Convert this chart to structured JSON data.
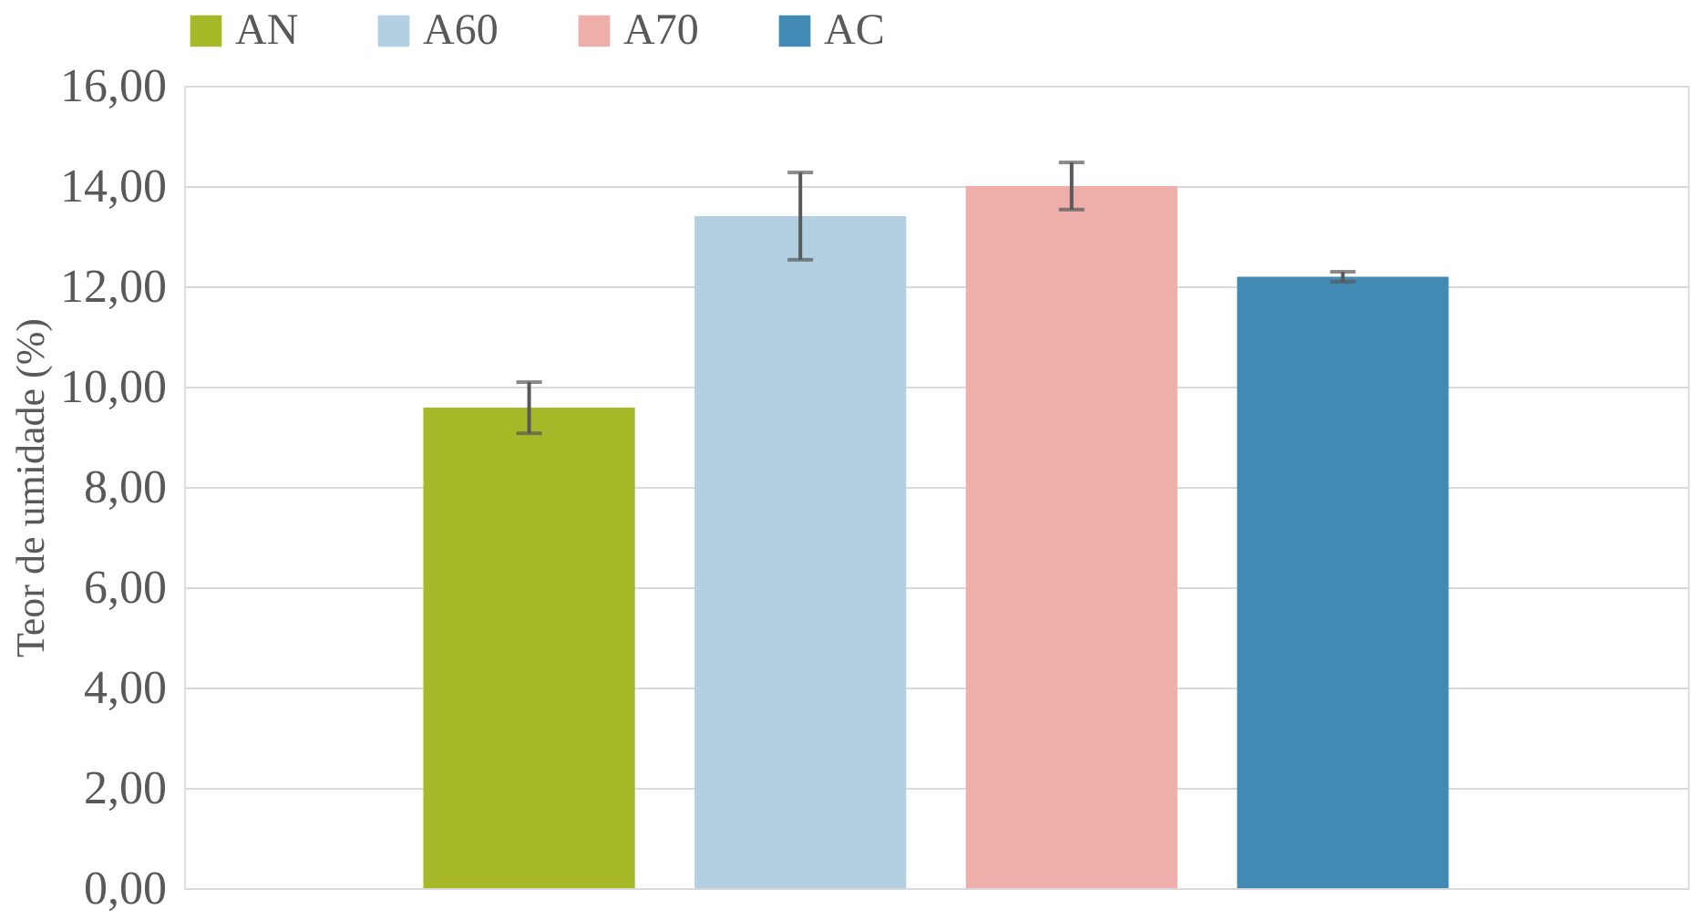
{
  "chart_data": {
    "type": "bar",
    "ylabel": "Teor de umidade (%)",
    "categories": [
      null
    ],
    "series": [
      {
        "name": "AN",
        "color": "#a7b828",
        "values": [
          9.58
        ],
        "errors": [
          0.51
        ]
      },
      {
        "name": "A60",
        "color": "#b2d0e2",
        "values": [
          13.4
        ],
        "errors": [
          0.87
        ]
      },
      {
        "name": "A70",
        "color": "#eeafaa",
        "values": [
          14.0
        ],
        "errors": [
          0.47
        ]
      },
      {
        "name": "AC",
        "color": "#418ab3",
        "values": [
          12.19
        ],
        "errors": [
          0.1
        ]
      }
    ],
    "ylim": [
      0,
      16
    ],
    "yticks": [
      {
        "value": 0,
        "label": "0,00"
      },
      {
        "value": 2,
        "label": "2,00"
      },
      {
        "value": 4,
        "label": "4,00"
      },
      {
        "value": 6,
        "label": "6,00"
      },
      {
        "value": 8,
        "label": "8,00"
      },
      {
        "value": 10,
        "label": "10,00"
      },
      {
        "value": 12,
        "label": "12,00"
      },
      {
        "value": 14,
        "label": "14,00"
      },
      {
        "value": 16,
        "label": "16,00"
      }
    ],
    "grid": "y",
    "legend": "top",
    "tick_labels": "y"
  }
}
